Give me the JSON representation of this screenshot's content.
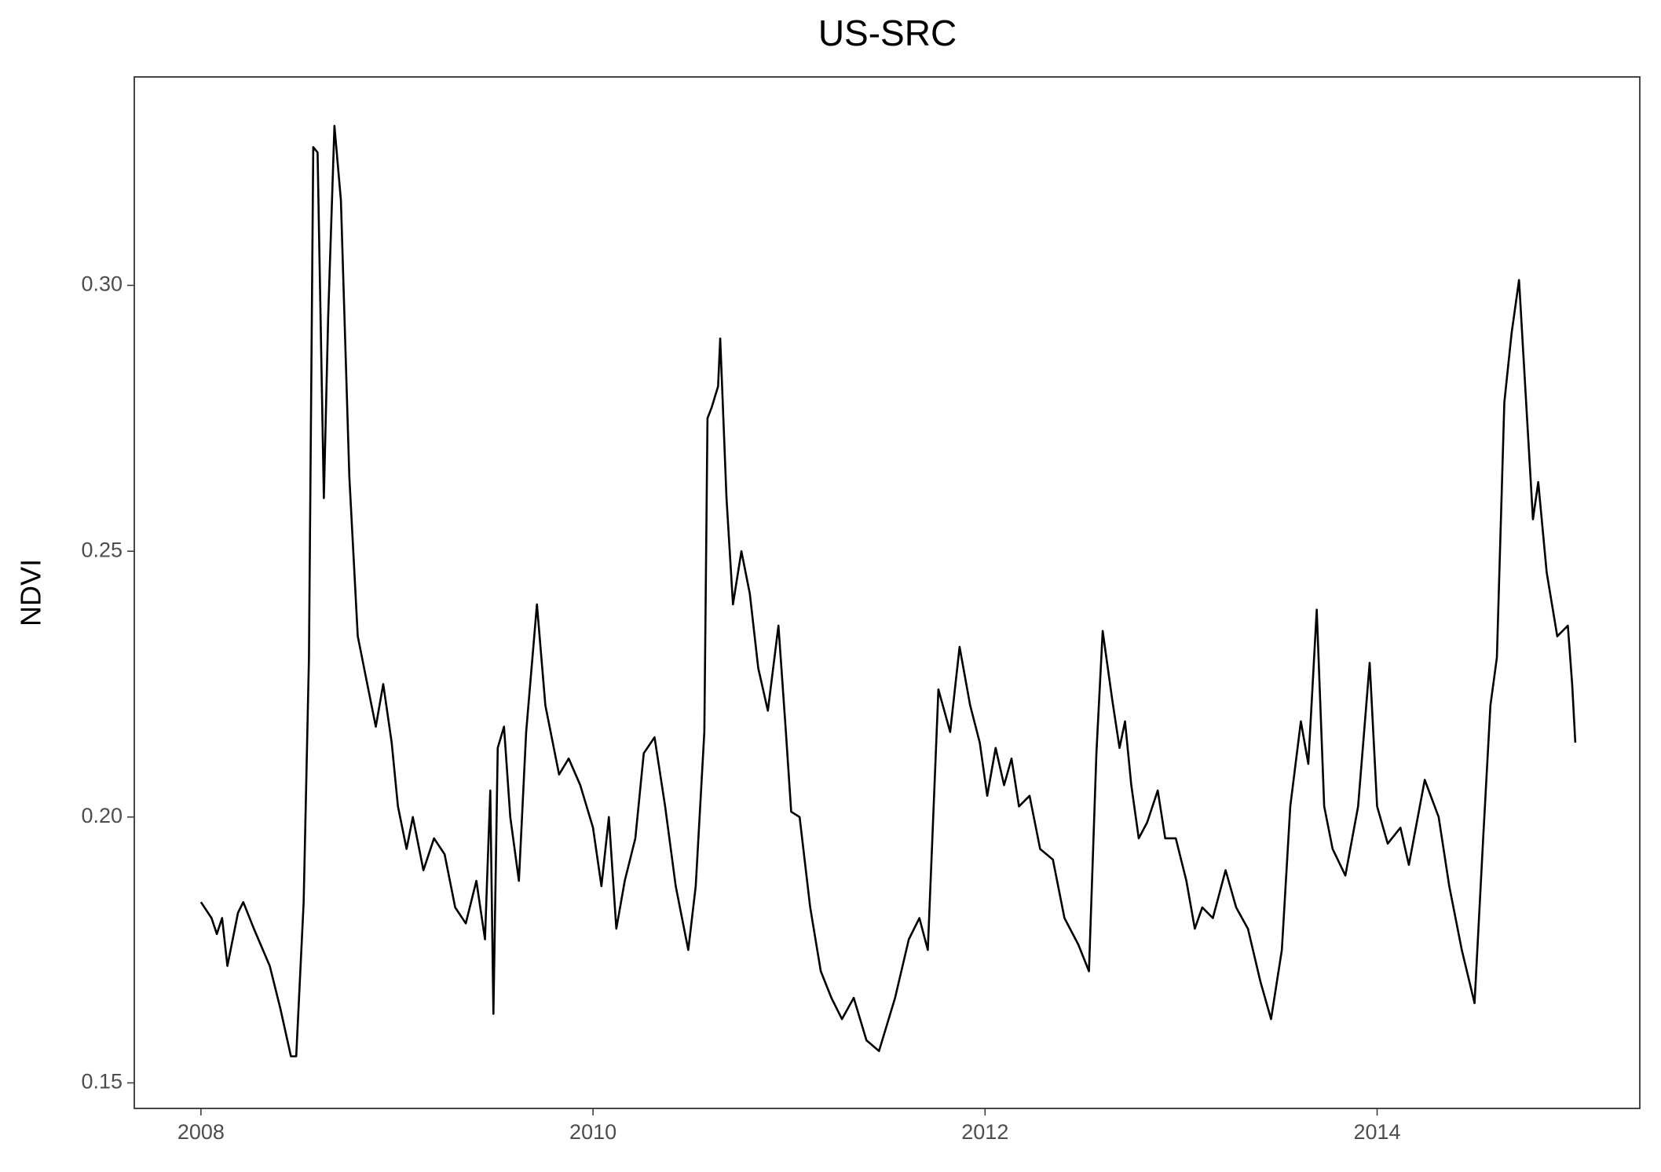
{
  "chart_data": {
    "type": "line",
    "title": "US-SRC",
    "y_label": "NDVI",
    "x": [
      2008.0,
      2008.054,
      2008.081,
      2008.108,
      2008.135,
      2008.189,
      2008.216,
      2008.27,
      2008.351,
      2008.405,
      2008.459,
      2008.486,
      2008.524,
      2008.551,
      2008.573,
      2008.595,
      2008.627,
      2008.649,
      2008.681,
      2008.714,
      2008.757,
      2008.8,
      2008.854,
      2008.892,
      2008.93,
      2008.973,
      2009.005,
      2009.049,
      2009.081,
      2009.135,
      2009.189,
      2009.243,
      2009.297,
      2009.351,
      2009.405,
      2009.449,
      2009.476,
      2009.492,
      2009.514,
      2009.546,
      2009.578,
      2009.622,
      2009.659,
      2009.714,
      2009.757,
      2009.827,
      2009.876,
      2009.935,
      2010.0,
      2010.043,
      2010.081,
      2010.119,
      2010.162,
      2010.216,
      2010.259,
      2010.314,
      2010.368,
      2010.422,
      2010.486,
      2010.524,
      2010.568,
      2010.584,
      2010.605,
      2010.638,
      2010.649,
      2010.681,
      2010.714,
      2010.757,
      2010.8,
      2010.843,
      2010.892,
      2010.946,
      2010.984,
      2011.011,
      2011.054,
      2011.108,
      2011.162,
      2011.216,
      2011.27,
      2011.33,
      2011.395,
      2011.459,
      2011.541,
      2011.611,
      2011.665,
      2011.708,
      2011.762,
      2011.822,
      2011.87,
      2011.924,
      2011.973,
      2012.011,
      2012.054,
      2012.097,
      2012.135,
      2012.173,
      2012.227,
      2012.281,
      2012.346,
      2012.405,
      2012.476,
      2012.53,
      2012.568,
      2012.6,
      2012.649,
      2012.686,
      2012.714,
      2012.746,
      2012.784,
      2012.827,
      2012.881,
      2012.919,
      2012.973,
      2013.027,
      2013.07,
      2013.108,
      2013.162,
      2013.227,
      2013.281,
      2013.341,
      2013.405,
      2013.459,
      2013.514,
      2013.557,
      2013.611,
      2013.649,
      2013.692,
      2013.73,
      2013.773,
      2013.838,
      2013.903,
      2013.962,
      2014.0,
      2014.054,
      2014.119,
      2014.162,
      2014.243,
      2014.314,
      2014.368,
      2014.432,
      2014.497,
      2014.541,
      2014.578,
      2014.611,
      2014.649,
      2014.686,
      2014.724,
      2014.757,
      2014.795,
      2014.822,
      2014.865,
      2014.919,
      2014.973,
      2014.995,
      2015.011
    ],
    "values": [
      0.184,
      0.181,
      0.178,
      0.181,
      0.172,
      0.182,
      0.184,
      0.179,
      0.172,
      0.164,
      0.155,
      0.155,
      0.184,
      0.23,
      0.326,
      0.325,
      0.26,
      0.294,
      0.33,
      0.316,
      0.264,
      0.234,
      0.224,
      0.217,
      0.225,
      0.214,
      0.202,
      0.194,
      0.2,
      0.19,
      0.196,
      0.193,
      0.183,
      0.18,
      0.188,
      0.177,
      0.205,
      0.163,
      0.213,
      0.217,
      0.2,
      0.188,
      0.216,
      0.24,
      0.221,
      0.208,
      0.211,
      0.206,
      0.198,
      0.187,
      0.2,
      0.179,
      0.188,
      0.196,
      0.212,
      0.215,
      0.202,
      0.187,
      0.175,
      0.187,
      0.216,
      0.275,
      0.277,
      0.281,
      0.29,
      0.26,
      0.24,
      0.25,
      0.242,
      0.228,
      0.22,
      0.236,
      0.216,
      0.201,
      0.2,
      0.183,
      0.171,
      0.166,
      0.162,
      0.166,
      0.158,
      0.156,
      0.166,
      0.177,
      0.181,
      0.175,
      0.224,
      0.216,
      0.232,
      0.221,
      0.214,
      0.204,
      0.213,
      0.206,
      0.211,
      0.202,
      0.204,
      0.194,
      0.192,
      0.181,
      0.176,
      0.171,
      0.212,
      0.235,
      0.222,
      0.213,
      0.218,
      0.206,
      0.196,
      0.199,
      0.205,
      0.196,
      0.196,
      0.188,
      0.179,
      0.183,
      0.181,
      0.19,
      0.183,
      0.179,
      0.169,
      0.162,
      0.175,
      0.202,
      0.218,
      0.21,
      0.239,
      0.202,
      0.194,
      0.189,
      0.202,
      0.229,
      0.202,
      0.195,
      0.198,
      0.191,
      0.207,
      0.2,
      0.187,
      0.175,
      0.165,
      0.196,
      0.221,
      0.23,
      0.278,
      0.291,
      0.301,
      0.28,
      0.256,
      0.263,
      0.246,
      0.234,
      0.236,
      0.225,
      0.214
    ],
    "color": "#000000",
    "xlim": [
      2007.66,
      2015.34
    ],
    "xticks": [
      2008,
      2010,
      2012,
      2014
    ],
    "ylim": [
      0.1452,
      0.3392
    ],
    "yticks": [
      0.15,
      {
        "value": 0.2,
        "label": "0.20"
      },
      0.25,
      {
        "value": 0.3,
        "label": "0.30"
      }
    ],
    "grid": false
  }
}
